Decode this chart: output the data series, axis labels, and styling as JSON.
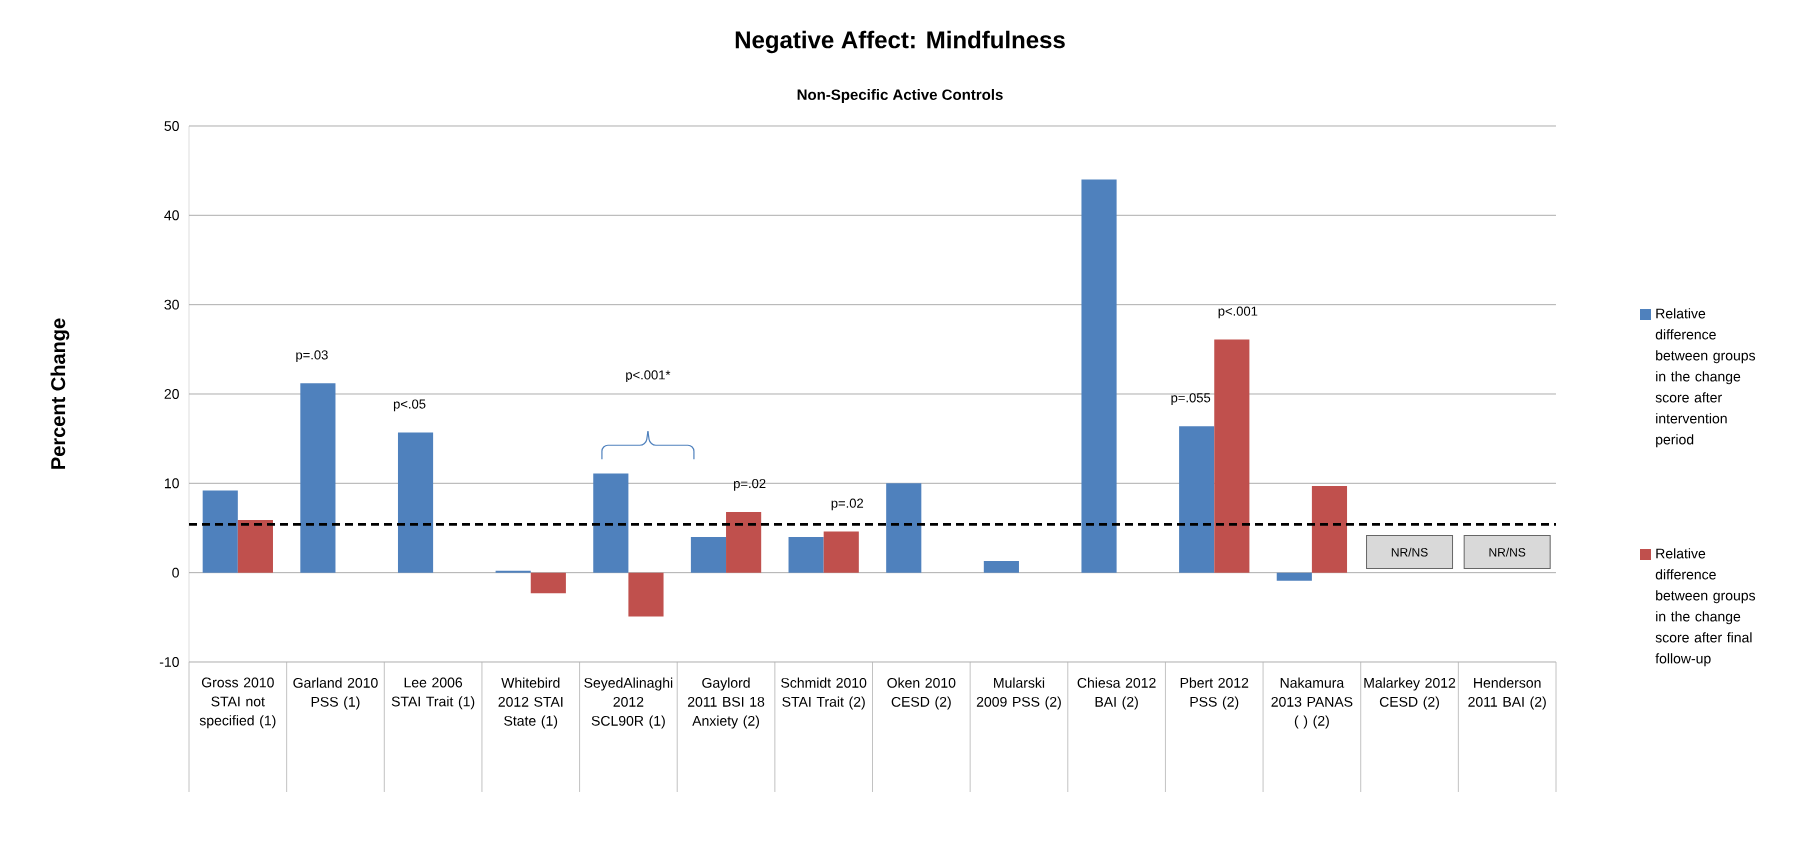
{
  "chart_data": {
    "type": "bar",
    "title": "Negative Affect: Mindfulness",
    "subtitle": "Non-Specific Active Controls",
    "ylabel": "Percent Change",
    "categories": [
      "Gross 2010 STAI not specified (1)",
      "Garland 2010 PSS (1)",
      "Lee 2006 STAI Trait (1)",
      "Whitebird 2012 STAI State (1)",
      "SeyedAlinaghi 2012 SCL90R (1)",
      "Gaylord 2011 BSI 18 Anxiety (2)",
      "Schmidt 2010 STAI Trait (2)",
      "Oken 2010 CESD (2)",
      "Mularski 2009 PSS (2)",
      "Chiesa 2012 BAI (2)",
      "Pbert 2012 PSS (2)",
      "Nakamura 2013 PANAS ( ) (2)",
      "Malarkey 2012 CESD (2)",
      "Henderson 2011 BAI (2)"
    ],
    "series": [
      {
        "name": "Relative difference between groups in the change score after intervention period",
        "color": "#4f81bd",
        "values": [
          9.2,
          21.2,
          15.7,
          0.2,
          11.1,
          4.0,
          4.0,
          10.0,
          1.3,
          44.0,
          16.4,
          -0.9,
          null,
          null
        ]
      },
      {
        "name": "Relative difference between groups in the change score after final follow-up",
        "color": "#c0504d",
        "values": [
          5.9,
          null,
          null,
          -2.3,
          -4.9,
          6.8,
          4.6,
          null,
          null,
          null,
          26.1,
          9.7,
          null,
          null
        ]
      }
    ],
    "ylim": [
      -10,
      50
    ],
    "yticks": [
      -10,
      0,
      10,
      20,
      30,
      40,
      50
    ],
    "grid": "y",
    "legend": "right",
    "ref_lines": [
      {
        "axis": "y",
        "value": 5.4,
        "color": "#000000",
        "line_style": "dashed"
      }
    ],
    "annotations": [
      {
        "text": "p=.03",
        "x": "Garland 2010 PSS (1)",
        "y": 21.2
      },
      {
        "text": "p<.05",
        "x": "Lee 2006 STAI Trait (1)",
        "y": 15.7
      },
      "p<.001*",
      {
        "text": "p=.02",
        "x": "Gaylord 2011 BSI 18 Anxiety (2)",
        "y": 6.8
      },
      {
        "text": "p=.02",
        "x": "Schmidt 2010 STAI Trait (2)",
        "y": 4.6
      },
      {
        "text": "p=.055",
        "x": "Pbert 2012 PSS (2)",
        "y": 16.4
      },
      {
        "text": "p<.001",
        "x": "Pbert 2012 PSS (2)",
        "y": 26.1
      },
      "NR/NS",
      "NR/NS"
    ]
  }
}
